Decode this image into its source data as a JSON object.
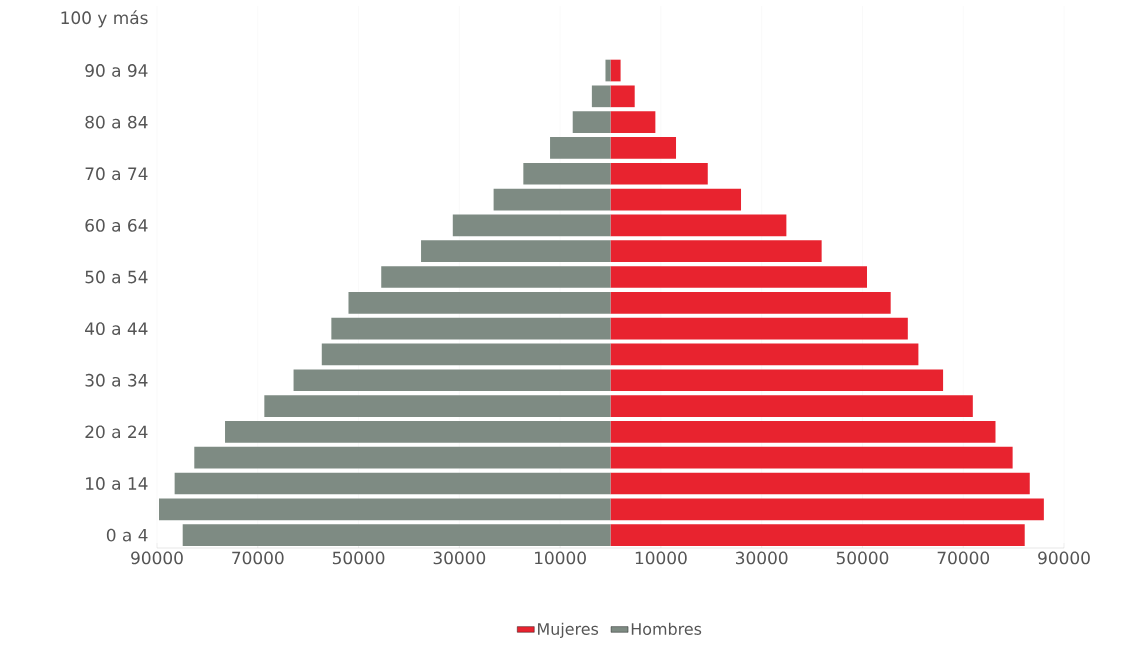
{
  "chart_data": {
    "type": "bar",
    "orientation": "horizontal",
    "stacked": true,
    "categories": [
      "100 y más",
      null,
      "90 a 94",
      null,
      "80 a 84",
      null,
      "70 a 74",
      null,
      "60 a 64",
      null,
      "50 a 54",
      null,
      "40 a 44",
      null,
      "30 a 34",
      null,
      "20 a 24",
      null,
      "10 a 14",
      null,
      "0 a 4"
    ],
    "series": [
      {
        "name": "Mujeres",
        "color": "#e8232f",
        "values": [
          0,
          0,
          2000,
          4800,
          8900,
          13000,
          19300,
          25900,
          34900,
          41900,
          50900,
          55600,
          59000,
          61100,
          66000,
          71900,
          76400,
          79800,
          83200,
          86000,
          82200
        ]
      },
      {
        "name": "Hombres",
        "color": "#7e8b83",
        "values": [
          0,
          0,
          -1000,
          -3700,
          -7500,
          -12000,
          -17300,
          -23200,
          -31300,
          -37600,
          -45500,
          -52000,
          -55400,
          -57300,
          -62900,
          -68700,
          -76500,
          -82600,
          -86500,
          -89600,
          -84900
        ]
      }
    ],
    "xlim": [
      -90000,
      90000
    ],
    "xticks": [
      {
        "value": -90000,
        "label": "90000"
      },
      {
        "value": -70000,
        "label": "70000"
      },
      {
        "value": -50000,
        "label": "50000"
      },
      {
        "value": -30000,
        "label": "30000"
      },
      {
        "value": -10000,
        "label": "10000"
      },
      10000,
      30000,
      50000,
      70000,
      90000
    ],
    "grid": "x",
    "legend": "bottom"
  }
}
